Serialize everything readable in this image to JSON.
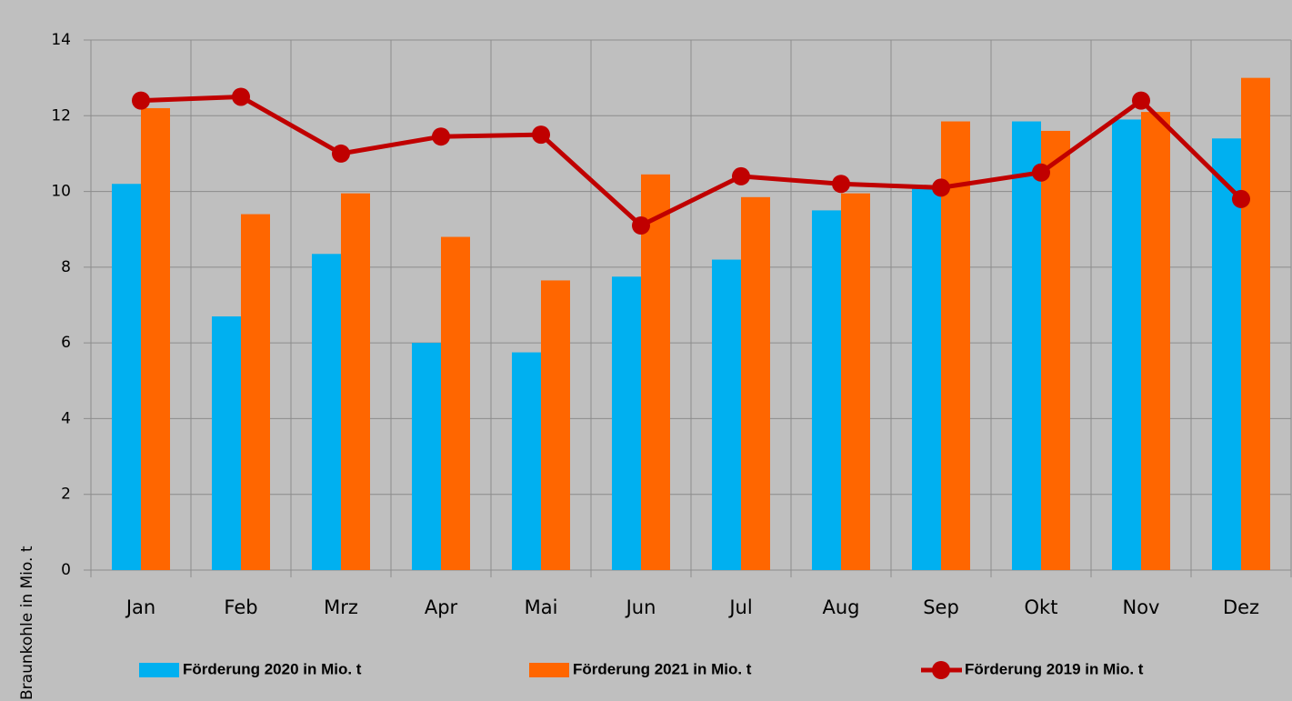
{
  "chart_data": {
    "type": "bar",
    "y_label": "Braunkohle in Mio. t",
    "categories": [
      "Jan",
      "Feb",
      "Mrz",
      "Apr",
      "Mai",
      "Jun",
      "Jul",
      "Aug",
      "Sep",
      "Okt",
      "Nov",
      "Dez"
    ],
    "series": [
      {
        "name": "Förderung 2020 in Mio. t",
        "type": "bar",
        "color": "#00b0f0",
        "values": [
          10.2,
          6.7,
          8.35,
          6.0,
          5.75,
          7.75,
          8.2,
          9.5,
          10.1,
          11.85,
          11.9,
          11.4
        ]
      },
      {
        "name": "Förderung 2021 in Mio. t",
        "type": "bar",
        "color": "#ff6600",
        "values": [
          12.2,
          9.4,
          9.95,
          8.8,
          7.65,
          10.45,
          9.85,
          9.95,
          11.85,
          11.6,
          12.1,
          13.0
        ]
      },
      {
        "name": "Förderung 2019 in Mio. t",
        "type": "line",
        "color": "#c00000",
        "values": [
          12.4,
          12.5,
          11.0,
          11.45,
          11.5,
          9.1,
          10.4,
          10.2,
          10.1,
          10.5,
          12.4,
          9.8
        ]
      }
    ],
    "ylim": [
      0,
      14
    ],
    "yticks": [
      0,
      2,
      4,
      6,
      8,
      10,
      12,
      14
    ],
    "grid": true
  }
}
